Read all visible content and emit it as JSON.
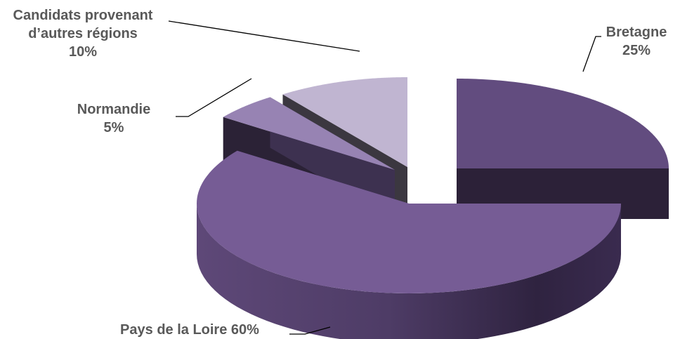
{
  "chart_data": {
    "type": "pie",
    "title": "",
    "three_d": true,
    "exploded": true,
    "slices": [
      {
        "key": "pays",
        "name": "Pays de la Loire",
        "value": 60,
        "label_lines": [
          "Pays de la Loire 60%"
        ],
        "colors": {
          "top": "#765C95",
          "side": "#5E4878",
          "sideDark": "#2F2340"
        }
      },
      {
        "key": "normandie",
        "name": "Normandie",
        "value": 5,
        "label_lines": [
          "Normandie",
          "5%"
        ],
        "colors": {
          "top": "#9783B3",
          "side": "#3D3150",
          "sideDark": "#2B2236"
        }
      },
      {
        "key": "autres",
        "name": "Candidats provenant d’autres régions",
        "value": 10,
        "label_lines": [
          "Candidats provenant",
          "d’autres régions",
          "10%"
        ],
        "colors": {
          "top": "#C0B5D1",
          "side": "#57525E",
          "sideDark": "#3B3740"
        }
      },
      {
        "key": "bretagne",
        "name": "Bretagne",
        "value": 25,
        "label_lines": [
          "Bretagne",
          "25%"
        ],
        "colors": {
          "top": "#624C7F",
          "side": "#2C2138",
          "sideDark": "#1E1626"
        }
      }
    ]
  }
}
